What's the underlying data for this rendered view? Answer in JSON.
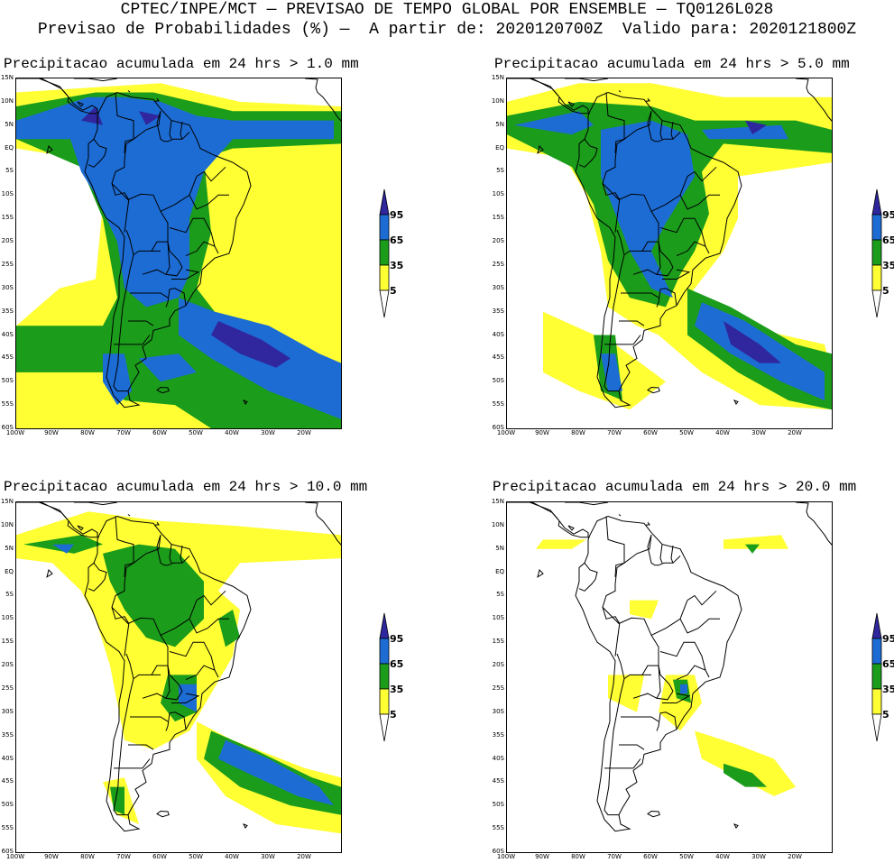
{
  "header": {
    "line1": "CPTEC/INPE/MCT — PREVISAO DE TEMPO GLOBAL POR ENSEMBLE — TQ0126L028",
    "line2": "Previsao de Probabilidades (%) —  A partir de: 2020120700Z  Valido para: 2020121800Z"
  },
  "panels": [
    {
      "id": "p1",
      "title": "Precipitacao acumulada em 24 hrs > 1.0 mm"
    },
    {
      "id": "p2",
      "title": "Precipitacao acumulada em 24 hrs > 5.0 mm"
    },
    {
      "id": "p3",
      "title": "Precipitacao acumulada em 24 hrs > 10.0 mm"
    },
    {
      "id": "p4",
      "title": "Precipitacao acumulada em 24 hrs > 20.0 mm"
    }
  ],
  "axes": {
    "lat_labels": [
      "15N",
      "10N",
      "5N",
      "EQ",
      "5S",
      "10S",
      "15S",
      "20S",
      "25S",
      "30S",
      "35S",
      "40S",
      "45S",
      "50S",
      "55S",
      "60S"
    ],
    "lon_labels": [
      "100W",
      "90W",
      "80W",
      "70W",
      "60W",
      "50W",
      "40W",
      "30W",
      "20W"
    ]
  },
  "legend": {
    "levels": [
      "95",
      "65",
      "35",
      "5"
    ],
    "colors": {
      "c5": "#ffff33",
      "c35": "#1b9c1b",
      "c65": "#1c6cd4",
      "c95": "#30279e",
      "outline": "#000000"
    }
  }
}
